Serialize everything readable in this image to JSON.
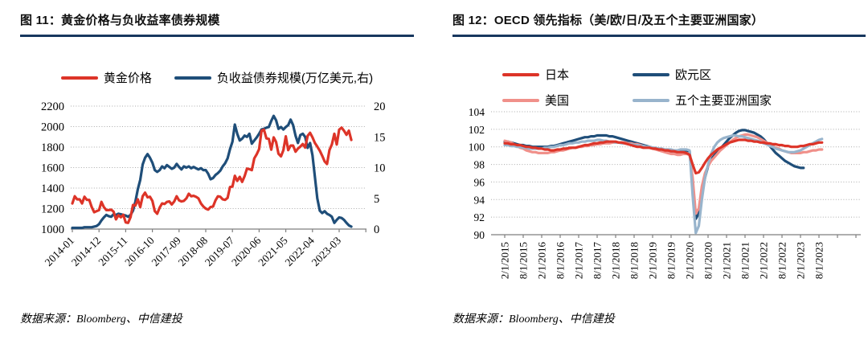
{
  "chart_data": [
    {
      "type": "line",
      "title": "图 11：黄金价格与负收益率债券规模",
      "source": "数据来源：Bloomberg、中信建投",
      "x_freq": "monthly",
      "x_first": "2014-01",
      "x_labels": [
        "2014-01",
        "2014-12",
        "2015-11",
        "2016-10",
        "2017-09",
        "2018-08",
        "2019-07",
        "2020-06",
        "2021-05",
        "2022-04",
        "2023-03"
      ],
      "x_tick_step_months": 11,
      "grid": "dotted-horizontal",
      "legend_position": "top",
      "left_axis": {
        "min": 1000,
        "max": 2200,
        "ticks": [
          1000,
          1200,
          1400,
          1600,
          1800,
          2000,
          2200
        ]
      },
      "right_axis": {
        "min": 0,
        "max": 20,
        "ticks": [
          0,
          5,
          10,
          15,
          20
        ]
      },
      "draw_order": [
        1,
        0
      ],
      "series": [
        {
          "name": "黄金价格",
          "axis": "left",
          "color": "#dd3428",
          "values": [
            1250,
            1320,
            1290,
            1290,
            1250,
            1315,
            1285,
            1285,
            1215,
            1165,
            1175,
            1185,
            1265,
            1215,
            1185,
            1185,
            1190,
            1170,
            1095,
            1135,
            1115,
            1140,
            1065,
            1060,
            1115,
            1235,
            1230,
            1290,
            1215,
            1320,
            1355,
            1310,
            1315,
            1275,
            1175,
            1150,
            1210,
            1250,
            1245,
            1265,
            1270,
            1240,
            1270,
            1320,
            1280,
            1270,
            1275,
            1300,
            1345,
            1320,
            1325,
            1315,
            1300,
            1250,
            1220,
            1200,
            1190,
            1215,
            1220,
            1280,
            1320,
            1315,
            1290,
            1285,
            1305,
            1410,
            1415,
            1520,
            1470,
            1510,
            1460,
            1515,
            1590,
            1585,
            1575,
            1690,
            1730,
            1780,
            1960,
            1970,
            1885,
            1880,
            1775,
            1895,
            1850,
            1735,
            1710,
            1770,
            1905,
            1770,
            1815,
            1815,
            1755,
            1785,
            1805,
            1830,
            1795,
            1910,
            1940,
            1895,
            1840,
            1805,
            1765,
            1715,
            1660,
            1635,
            1770,
            1825,
            1930,
            1825,
            1970,
            1990,
            1960,
            1920,
            1960,
            1870
          ]
        },
        {
          "name": "负收益债券规模(万亿美元,右)",
          "axis": "right",
          "color": "#1f4e79",
          "values": [
            0.2,
            0.2,
            0.2,
            0.2,
            0.2,
            0.3,
            0.3,
            0.3,
            0.3,
            0.4,
            0.5,
            0.8,
            1.4,
            1.9,
            2.3,
            2.1,
            2.0,
            2.4,
            2.3,
            2.5,
            2.4,
            2.3,
            2.2,
            2.0,
            2.3,
            3.0,
            4.5,
            6.5,
            8.0,
            10.5,
            11.6,
            12.2,
            11.6,
            10.8,
            9.6,
            9.3,
            9.6,
            10.2,
            9.9,
            10.4,
            10.1,
            9.8,
            10.0,
            10.6,
            10.1,
            9.7,
            10.2,
            10.0,
            10.2,
            9.9,
            10.1,
            9.9,
            9.7,
            9.9,
            9.6,
            9.6,
            9.0,
            8.1,
            8.3,
            8.8,
            9.1,
            9.5,
            10.2,
            10.7,
            11.5,
            13.0,
            14.2,
            17.0,
            15.5,
            14.4,
            14.7,
            15.2,
            15.0,
            15.5,
            13.9,
            14.4,
            14.9,
            15.5,
            16.2,
            16.3,
            16.5,
            16.6,
            17.6,
            18.4,
            17.7,
            16.3,
            16.6,
            16.2,
            16.6,
            16.9,
            17.8,
            16.9,
            15.2,
            14.0,
            15.3,
            15.5,
            15.0,
            13.2,
            14.0,
            12.0,
            8.5,
            5.0,
            3.0,
            2.6,
            2.9,
            2.5,
            2.3,
            2.0,
            1.0,
            1.5,
            1.9,
            1.8,
            1.5,
            1.0,
            0.6,
            0.4
          ]
        }
      ]
    },
    {
      "type": "line",
      "title": "图 12：OECD 领先指标（美/欧/日/及五个主要亚洲国家）",
      "source": "数据来源：Bloomberg、中信建投",
      "x_freq": "monthly",
      "x_first": "2/1/2015",
      "x_labels": [
        "2/1/2015",
        "8/1/2015",
        "2/1/2016",
        "8/1/2016",
        "2/1/2017",
        "8/1/2017",
        "2/1/2018",
        "8/1/2018",
        "2/1/2019",
        "8/1/2019",
        "2/1/2020",
        "8/1/2020",
        "2/1/2021",
        "8/1/2021",
        "2/1/2022",
        "8/1/2022",
        "2/1/2023",
        "8/1/2023"
      ],
      "x_tick_step_months": 6,
      "grid": "dotted-horizontal",
      "legend_position": "top",
      "left_axis": {
        "min": 90,
        "max": 104,
        "ticks": [
          90,
          92,
          94,
          96,
          98,
          100,
          102,
          104
        ]
      },
      "draw_order": [
        1,
        2,
        3,
        0
      ],
      "series": [
        {
          "name": "日本",
          "axis": "left",
          "color": "#dd3428",
          "values": [
            100.4,
            100.4,
            100.3,
            100.3,
            100.2,
            100.2,
            100.1,
            100.0,
            100.0,
            99.9,
            99.9,
            99.8,
            99.8,
            99.7,
            99.7,
            99.6,
            99.6,
            99.7,
            99.7,
            99.8,
            99.8,
            99.9,
            99.9,
            99.9,
            100.0,
            100.1,
            100.2,
            100.2,
            100.3,
            100.4,
            100.4,
            100.5,
            100.5,
            100.6,
            100.6,
            100.6,
            100.6,
            100.5,
            100.5,
            100.4,
            100.3,
            100.2,
            100.1,
            100.0,
            100.0,
            99.9,
            99.9,
            99.9,
            99.8,
            99.8,
            99.7,
            99.7,
            99.6,
            99.6,
            99.5,
            99.5,
            99.4,
            99.4,
            99.4,
            99.3,
            99.1,
            98.0,
            97.0,
            97.1,
            97.6,
            98.2,
            98.7,
            99.1,
            99.4,
            99.7,
            99.9,
            100.1,
            100.3,
            100.5,
            100.6,
            100.7,
            100.8,
            100.8,
            100.8,
            100.7,
            100.7,
            100.6,
            100.6,
            100.5,
            100.5,
            100.4,
            100.4,
            100.3,
            100.3,
            100.2,
            100.2,
            100.1,
            100.1,
            100.0,
            100.0,
            100.0,
            100.1,
            100.1,
            100.2,
            100.3,
            100.3,
            100.4,
            100.5,
            100.5
          ]
        },
        {
          "name": "欧元区",
          "axis": "left",
          "color": "#1f4e79",
          "values": [
            100.6,
            100.6,
            100.5,
            100.4,
            100.3,
            100.2,
            100.2,
            100.1,
            100.1,
            100.0,
            100.0,
            100.0,
            100.0,
            100.0,
            100.0,
            100.1,
            100.1,
            100.2,
            100.3,
            100.4,
            100.5,
            100.6,
            100.7,
            100.8,
            100.9,
            101.0,
            101.1,
            101.1,
            101.2,
            101.2,
            101.3,
            101.3,
            101.3,
            101.3,
            101.2,
            101.2,
            101.1,
            101.0,
            100.9,
            100.8,
            100.7,
            100.6,
            100.5,
            100.4,
            100.3,
            100.2,
            100.1,
            100.0,
            99.9,
            99.8,
            99.7,
            99.7,
            99.6,
            99.6,
            99.5,
            99.5,
            99.5,
            99.5,
            99.6,
            99.6,
            99.5,
            96.0,
            91.8,
            92.4,
            94.5,
            96.5,
            97.8,
            98.6,
            99.0,
            99.4,
            99.8,
            100.2,
            100.6,
            101.0,
            101.3,
            101.6,
            101.8,
            101.9,
            101.9,
            101.8,
            101.7,
            101.6,
            101.4,
            101.2,
            100.9,
            100.5,
            100.1,
            99.7,
            99.3,
            99.0,
            98.7,
            98.4,
            98.2,
            98.0,
            97.8,
            97.7,
            97.6,
            97.6
          ]
        },
        {
          "name": "美国",
          "axis": "left",
          "color": "#f0908a",
          "values": [
            100.7,
            100.6,
            100.5,
            100.3,
            100.1,
            99.9,
            99.8,
            99.6,
            99.5,
            99.4,
            99.4,
            99.3,
            99.3,
            99.3,
            99.3,
            99.4,
            99.4,
            99.5,
            99.6,
            99.6,
            99.7,
            99.8,
            99.9,
            99.9,
            100.0,
            100.0,
            100.1,
            100.1,
            100.2,
            100.2,
            100.3,
            100.3,
            100.4,
            100.4,
            100.4,
            100.5,
            100.5,
            100.5,
            100.5,
            100.5,
            100.4,
            100.4,
            100.3,
            100.3,
            100.2,
            100.1,
            100.0,
            99.9,
            99.8,
            99.7,
            99.6,
            99.5,
            99.4,
            99.3,
            99.2,
            99.2,
            99.1,
            99.1,
            99.2,
            99.2,
            99.1,
            96.5,
            92.4,
            93.0,
            95.5,
            97.0,
            97.8,
            98.4,
            98.8,
            99.2,
            99.6,
            99.9,
            100.2,
            100.5,
            100.8,
            101.0,
            101.2,
            101.3,
            101.4,
            101.4,
            101.3,
            101.2,
            101.1,
            100.9,
            100.7,
            100.5,
            100.3,
            100.1,
            99.9,
            99.8,
            99.6,
            99.5,
            99.4,
            99.3,
            99.3,
            99.3,
            99.3,
            99.4,
            99.4,
            99.5,
            99.6,
            99.6,
            99.7,
            99.7
          ]
        },
        {
          "name": "五个主要亚洲国家",
          "axis": "left",
          "color": "#98b4cc",
          "values": [
            100.2,
            100.2,
            100.1,
            100.1,
            100.0,
            100.0,
            99.9,
            99.9,
            99.8,
            99.8,
            99.8,
            99.8,
            99.8,
            99.9,
            99.9,
            100.0,
            100.0,
            100.1,
            100.2,
            100.2,
            100.3,
            100.4,
            100.4,
            100.5,
            100.5,
            100.6,
            100.6,
            100.7,
            100.7,
            100.7,
            100.8,
            100.8,
            100.7,
            100.7,
            100.6,
            100.6,
            100.5,
            100.5,
            100.4,
            100.4,
            100.3,
            100.3,
            100.2,
            100.2,
            100.1,
            100.1,
            100.0,
            100.0,
            99.9,
            99.9,
            99.8,
            99.8,
            99.7,
            99.7,
            99.7,
            99.6,
            99.6,
            99.7,
            99.7,
            99.7,
            99.6,
            94.5,
            90.2,
            91.0,
            94.0,
            96.5,
            98.0,
            99.2,
            100.0,
            100.5,
            100.8,
            101.0,
            101.1,
            101.2,
            101.3,
            101.3,
            101.2,
            101.2,
            101.1,
            101.0,
            100.9,
            100.8,
            100.7,
            100.6,
            100.4,
            100.3,
            100.1,
            100.0,
            99.8,
            99.7,
            99.6,
            99.5,
            99.4,
            99.4,
            99.4,
            99.5,
            99.6,
            99.8,
            100.0,
            100.2,
            100.4,
            100.6,
            100.8,
            100.9
          ]
        }
      ]
    }
  ]
}
